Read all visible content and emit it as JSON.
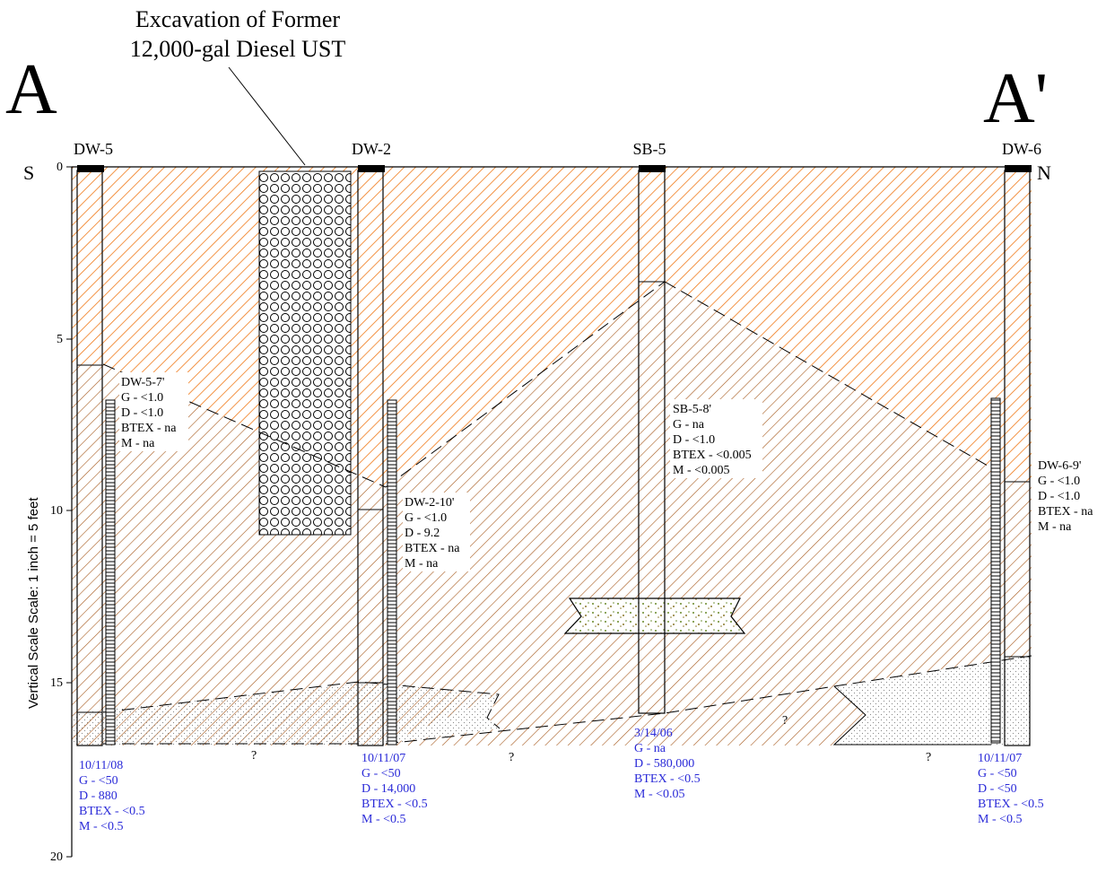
{
  "title": {
    "line1": "Excavation of Former",
    "line2": "12,000-gal Diesel UST"
  },
  "section_labels": {
    "left": "A",
    "right": "A'"
  },
  "directions": {
    "left": "S",
    "right": "N"
  },
  "vertical_axis": {
    "label": "Vertical Scale Scale:  1 inch = 5 feet",
    "ticks": [
      "0",
      "5",
      "10",
      "15",
      "20"
    ]
  },
  "wells": [
    {
      "name": "DW-5"
    },
    {
      "name": "DW-2"
    },
    {
      "name": "SB-5"
    },
    {
      "name": "DW-6"
    }
  ],
  "sample_labels": {
    "dw5": [
      "DW-5-7'",
      "G - <1.0",
      "D - <1.0",
      "BTEX - na",
      "M - na"
    ],
    "dw2": [
      "DW-2-10'",
      "G - <1.0",
      "D - 9.2",
      "BTEX - na",
      "M - na"
    ],
    "sb5": [
      "SB-5-8'",
      "G - na",
      "D - <1.0",
      "BTEX - <0.005",
      "M - <0.005"
    ],
    "dw6": [
      "DW-6-9'",
      "G - <1.0",
      "D - <1.0",
      "BTEX - na",
      "M - na"
    ]
  },
  "groundwater_labels": {
    "dw5": [
      "10/11/08",
      "G - <50",
      "D - 880",
      "BTEX - <0.5",
      "M - <0.5"
    ],
    "dw2": [
      "10/11/07",
      "G - <50",
      "D - 14,000",
      "BTEX - <0.5",
      "M - <0.5"
    ],
    "sb5": [
      "3/14/06",
      "G - na",
      "D - 580,000",
      "BTEX - <0.5",
      "M - <0.05"
    ],
    "dw6": [
      "10/11/07",
      "G - <50",
      "D - <50",
      "BTEX - <0.5",
      "M - <0.5"
    ]
  },
  "question_marks": [
    "?",
    "?",
    "?",
    "?",
    "?"
  ],
  "colors": {
    "orange_fill": "#f07a1a",
    "brown_hatch": "#a65a1e",
    "blue_text": "#2a2ad8"
  }
}
